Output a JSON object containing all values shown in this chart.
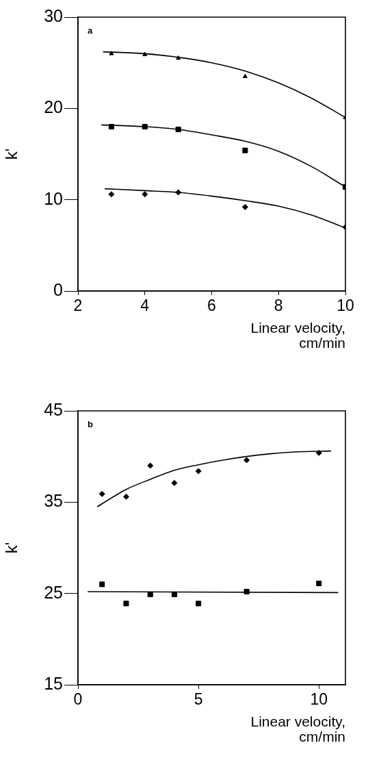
{
  "chart_data": [
    {
      "type": "scatter",
      "xlabel": "Linear velocity, cm/min",
      "ylabel": "k'",
      "xlim": [
        2,
        10
      ],
      "ylim": [
        0,
        30
      ],
      "xticks": [
        2,
        4,
        6,
        8,
        10
      ],
      "yticks": [
        0,
        10,
        20,
        30
      ],
      "annotations": [
        "a"
      ],
      "series": [
        {
          "type": "scatter",
          "marker": "triangle",
          "color": "#000000",
          "x": [
            3,
            4,
            5,
            7,
            10
          ],
          "values": [
            26.0,
            25.9,
            25.5,
            23.5,
            19.0
          ]
        },
        {
          "type": "scatter",
          "marker": "square",
          "color": "#000000",
          "x": [
            3,
            4,
            5,
            7,
            10
          ],
          "values": [
            18.0,
            18.0,
            17.7,
            15.4,
            11.4
          ]
        },
        {
          "type": "scatter",
          "marker": "diamond",
          "color": "#000000",
          "x": [
            3,
            4,
            5,
            7,
            10
          ],
          "values": [
            10.6,
            10.6,
            10.8,
            9.2,
            7.0
          ]
        },
        {
          "type": "line",
          "marker": "none",
          "color": "#000000",
          "x": [
            2.75,
            4,
            5,
            6,
            7,
            8,
            9,
            10
          ],
          "values": [
            26.2,
            26.0,
            25.6,
            25.0,
            24.1,
            22.8,
            21.1,
            19.0
          ]
        },
        {
          "type": "line",
          "marker": "none",
          "color": "#000000",
          "x": [
            2.7,
            4,
            5,
            6,
            7,
            8,
            9,
            10
          ],
          "values": [
            18.2,
            18.0,
            17.7,
            17.1,
            16.4,
            15.3,
            13.6,
            11.4
          ]
        },
        {
          "type": "line",
          "marker": "none",
          "color": "#000000",
          "x": [
            2.8,
            4,
            5,
            6,
            7,
            8,
            9,
            10
          ],
          "values": [
            11.2,
            11.0,
            10.8,
            10.4,
            9.9,
            9.3,
            8.3,
            6.9
          ]
        }
      ]
    },
    {
      "type": "scatter",
      "xlabel": "Linear velocity, cm/min",
      "ylabel": "k'",
      "xlim": [
        0,
        11.1
      ],
      "ylim": [
        15,
        45
      ],
      "xticks": [
        0,
        5,
        10
      ],
      "yticks": [
        15,
        25,
        35,
        45
      ],
      "annotations": [
        "b"
      ],
      "series": [
        {
          "type": "scatter",
          "marker": "diamond",
          "color": "#000000",
          "x": [
            1,
            2,
            3,
            4,
            5,
            7,
            10
          ],
          "values": [
            35.9,
            35.6,
            39.0,
            37.1,
            38.4,
            39.6,
            40.4
          ]
        },
        {
          "type": "scatter",
          "marker": "square",
          "color": "#000000",
          "x": [
            1,
            2,
            3,
            4,
            5,
            7,
            10
          ],
          "values": [
            26.0,
            23.9,
            24.9,
            24.9,
            23.9,
            25.2,
            26.1
          ]
        },
        {
          "type": "line",
          "marker": "none",
          "color": "#000000",
          "x": [
            0.8,
            2,
            3,
            4,
            5,
            6,
            7,
            8,
            9,
            10.5
          ],
          "values": [
            34.5,
            36.4,
            37.5,
            38.5,
            39.1,
            39.6,
            40.0,
            40.3,
            40.5,
            40.6
          ]
        },
        {
          "type": "line",
          "marker": "none",
          "color": "#000000",
          "x": [
            0.4,
            10.8
          ],
          "values": [
            25.2,
            25.1
          ]
        }
      ]
    }
  ]
}
